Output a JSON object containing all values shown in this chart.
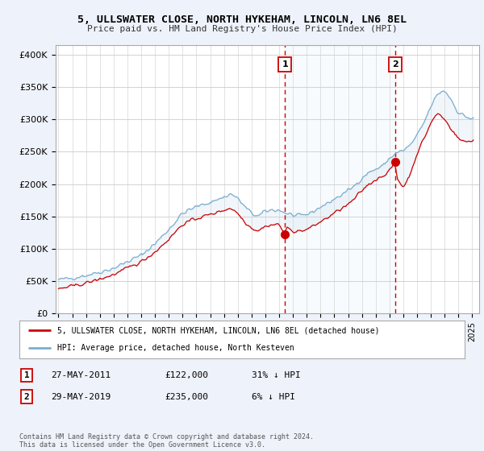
{
  "title1": "5, ULLSWATER CLOSE, NORTH HYKEHAM, LINCOLN, LN6 8EL",
  "title2": "Price paid vs. HM Land Registry's House Price Index (HPI)",
  "ylabel_ticks": [
    "£0",
    "£50K",
    "£100K",
    "£150K",
    "£200K",
    "£250K",
    "£300K",
    "£350K",
    "£400K"
  ],
  "ytick_vals": [
    0,
    50000,
    100000,
    150000,
    200000,
    250000,
    300000,
    350000,
    400000
  ],
  "ylim": [
    0,
    415000
  ],
  "xlim_start": 1995.0,
  "xlim_end": 2025.5,
  "background_color": "#eef2fa",
  "plot_bg_color": "#ffffff",
  "line_color_red": "#cc0000",
  "line_color_blue": "#7aadcf",
  "fill_color_blue": "#c8dff0",
  "vline_color": "#cc0000",
  "sale1_x": 2011.42,
  "sale1_y": 122000,
  "sale2_x": 2019.42,
  "sale2_y": 235000,
  "legend_label_red": "5, ULLSWATER CLOSE, NORTH HYKEHAM, LINCOLN, LN6 8EL (detached house)",
  "legend_label_blue": "HPI: Average price, detached house, North Kesteven",
  "table_row1": [
    "1",
    "27-MAY-2011",
    "£122,000",
    "31% ↓ HPI"
  ],
  "table_row2": [
    "2",
    "29-MAY-2019",
    "£235,000",
    "6% ↓ HPI"
  ],
  "footer": "Contains HM Land Registry data © Crown copyright and database right 2024.\nThis data is licensed under the Open Government Licence v3.0."
}
